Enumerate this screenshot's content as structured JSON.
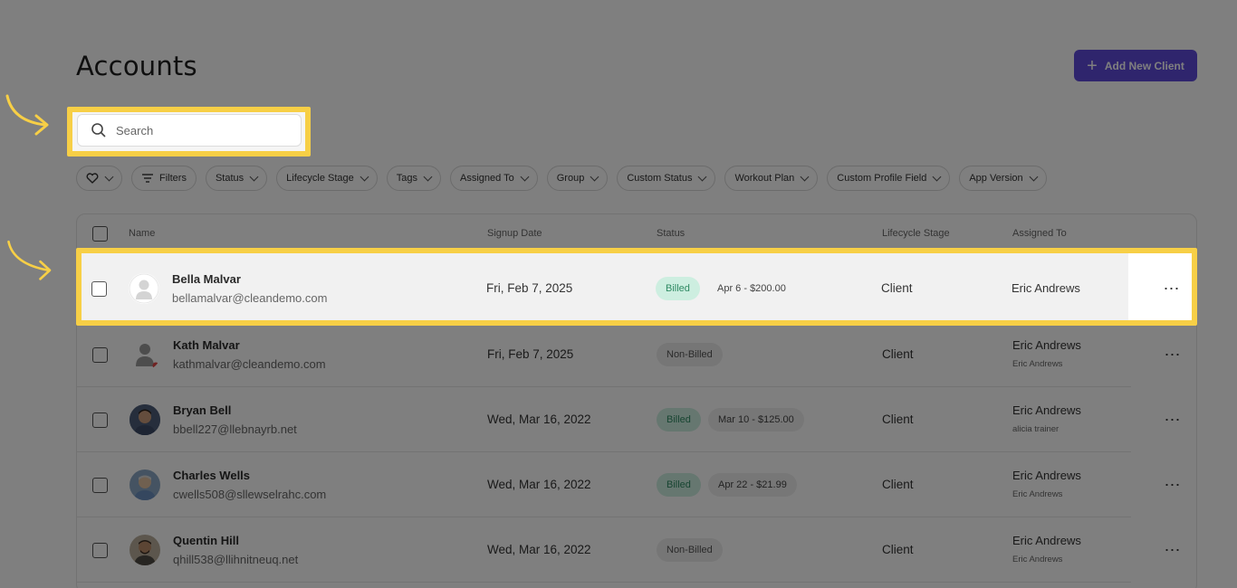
{
  "page": {
    "title": "Accounts",
    "add_button": "Add New Client"
  },
  "search": {
    "placeholder": "Search"
  },
  "filters": [
    "Filters",
    "Status",
    "Lifecycle Stage",
    "Tags",
    "Assigned To",
    "Group",
    "Custom Status",
    "Workout Plan",
    "Custom Profile Field",
    "App Version"
  ],
  "table": {
    "headers": {
      "name": "Name",
      "signup": "Signup Date",
      "status": "Status",
      "lifecycle": "Lifecycle Stage",
      "assigned": "Assigned To"
    },
    "rows": [
      {
        "name": "Bella Malvar",
        "email": "bellamalvar@cleandemo.com",
        "signup": "Fri, Feb 7, 2025",
        "status": "Billed",
        "amount": "Apr 6 - $200.00",
        "lifecycle": "Client",
        "assigned": "Eric Andrews",
        "assigned_sub": ""
      },
      {
        "name": "Kath Malvar",
        "email": "kathmalvar@cleandemo.com",
        "signup": "Fri, Feb 7, 2025",
        "status": "Non-Billed",
        "amount": "",
        "lifecycle": "Client",
        "assigned": "Eric Andrews",
        "assigned_sub": "Eric Andrews"
      },
      {
        "name": "Bryan Bell",
        "email": "bbell227@llebnayrb.net",
        "signup": "Wed, Mar 16, 2022",
        "status": "Billed",
        "amount": "Mar 10 - $125.00",
        "lifecycle": "Client",
        "assigned": "Eric Andrews",
        "assigned_sub": "alicia trainer"
      },
      {
        "name": "Charles Wells",
        "email": "cwells508@sllewselrahc.com",
        "signup": "Wed, Mar 16, 2022",
        "status": "Billed",
        "amount": "Apr 22 - $21.99",
        "lifecycle": "Client",
        "assigned": "Eric Andrews",
        "assigned_sub": "Eric Andrews"
      },
      {
        "name": "Quentin Hill",
        "email": "qhill538@llihnitneuq.net",
        "signup": "Wed, Mar 16, 2022",
        "status": "Non-Billed",
        "amount": "",
        "lifecycle": "Client",
        "assigned": "Eric Andrews",
        "assigned_sub": "Eric Andrews"
      }
    ]
  },
  "colors": {
    "accent": "#5f4bdb",
    "highlight": "#f7cf46",
    "billed_bg": "#cdeee0",
    "billed_text": "#2f8a63"
  }
}
